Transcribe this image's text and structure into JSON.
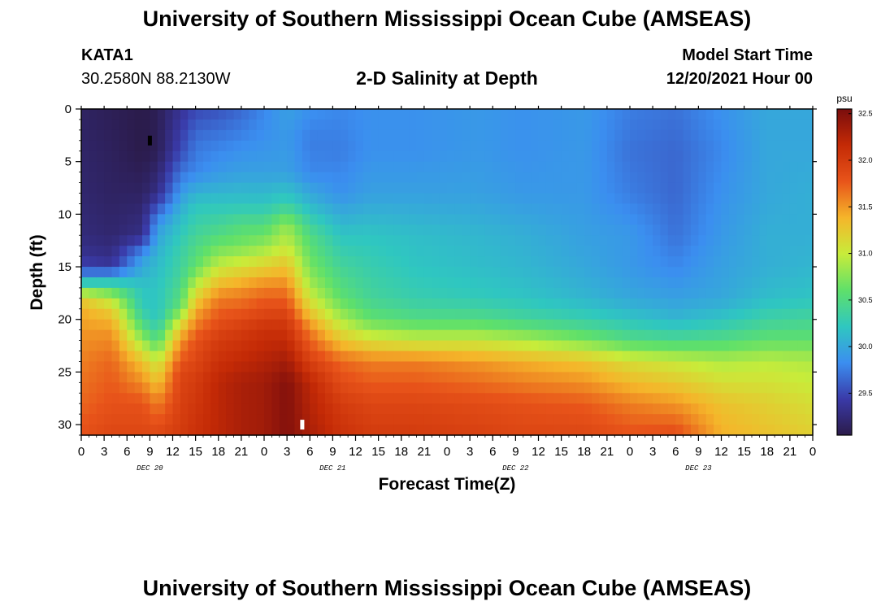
{
  "header": {
    "title": "University of Southern Mississippi Ocean Cube (AMSEAS)",
    "station": "KATA1",
    "coords": "30.2580N  88.2130W",
    "chart_title": "2-D Salinity at Depth",
    "model_start_label": "Model Start Time",
    "model_start_value": "12/20/2021 Hour 00",
    "repeat_title": "University of Southern Mississippi Ocean Cube (AMSEAS)"
  },
  "colors": {
    "scale": [
      "#2b1b4a",
      "#3a3aa8",
      "#3b8ef0",
      "#2fc7c0",
      "#5fe06a",
      "#c8ec3a",
      "#f5b52a",
      "#e8541a",
      "#c42a06",
      "#7a0d0d"
    ]
  },
  "chart_data": {
    "type": "heatmap",
    "title": "2-D Salinity at Depth",
    "xlabel": "Forecast Time(Z)",
    "ylabel": "Depth (ft)",
    "x_tick_labels": [
      "0",
      "3",
      "6",
      "9",
      "12",
      "15",
      "18",
      "21",
      "0",
      "3",
      "6",
      "9",
      "12",
      "15",
      "18",
      "21",
      "0",
      "3",
      "6",
      "9",
      "12",
      "15",
      "18",
      "21",
      "0",
      "3",
      "6",
      "9",
      "12",
      "15",
      "18",
      "21",
      "0"
    ],
    "day_labels": [
      "DEC 20",
      "DEC 21",
      "DEC 22",
      "DEC 23"
    ],
    "x_range_hours": [
      0,
      96
    ],
    "y_ticks": [
      0,
      5,
      10,
      15,
      20,
      25,
      30
    ],
    "y_range_ft": [
      0,
      31
    ],
    "colorbar": {
      "unit": "psu",
      "range": [
        29.05,
        32.55
      ],
      "ticks": [
        "32.5",
        "32.0",
        "31.5",
        "31.0",
        "30.5",
        "30.0",
        "29.5"
      ]
    },
    "markers": [
      {
        "hour": 9,
        "depth_ft": 3,
        "color": "#000000"
      },
      {
        "hour": 29,
        "depth_ft": 30,
        "color": "#ffffff"
      }
    ],
    "salinity_profiles": [
      {
        "hour": 0,
        "depth": [
          0,
          8,
          12,
          14,
          15,
          16,
          17,
          18,
          19,
          21,
          24,
          28,
          31
        ],
        "psu": [
          29.15,
          29.2,
          29.25,
          29.35,
          29.5,
          29.9,
          30.6,
          31.2,
          31.4,
          31.5,
          31.6,
          31.7,
          31.8
        ]
      },
      {
        "hour": 4,
        "depth": [
          0,
          8,
          12,
          14,
          15,
          16,
          17,
          18,
          19,
          21,
          24,
          28,
          31
        ],
        "psu": [
          29.1,
          29.15,
          29.2,
          29.3,
          29.4,
          30.0,
          30.5,
          30.9,
          31.2,
          31.5,
          31.7,
          31.8,
          31.9
        ]
      },
      {
        "hour": 8,
        "depth": [
          0,
          4,
          8,
          12,
          14,
          17,
          19,
          21,
          24,
          28,
          31
        ],
        "psu": [
          29.05,
          29.05,
          29.15,
          29.3,
          29.9,
          30.2,
          30.25,
          30.6,
          31.3,
          31.8,
          31.9
        ]
      },
      {
        "hour": 10,
        "depth": [
          0,
          4,
          8,
          11,
          14,
          17,
          20,
          22,
          24,
          28,
          31
        ],
        "psu": [
          29.1,
          29.1,
          29.3,
          29.9,
          30.1,
          30.2,
          30.2,
          30.5,
          31.0,
          31.6,
          31.9
        ]
      },
      {
        "hour": 13,
        "depth": [
          0,
          4,
          7,
          10,
          13,
          16,
          19,
          20,
          22,
          25,
          31
        ],
        "psu": [
          29.35,
          29.5,
          29.8,
          30.1,
          30.3,
          30.4,
          30.6,
          31.0,
          31.5,
          31.9,
          32.0
        ]
      },
      {
        "hour": 15,
        "depth": [
          0,
          3,
          6,
          9,
          12,
          15,
          17,
          19,
          22,
          26,
          31
        ],
        "psu": [
          29.5,
          29.7,
          29.8,
          30.2,
          30.4,
          30.6,
          31.0,
          31.4,
          31.8,
          32.0,
          32.1
        ]
      },
      {
        "hour": 18,
        "depth": [
          0,
          3,
          6,
          9,
          12,
          14,
          16,
          18,
          22,
          26,
          31
        ],
        "psu": [
          29.55,
          29.75,
          29.9,
          30.2,
          30.5,
          30.8,
          31.2,
          31.6,
          32.0,
          32.2,
          32.2
        ]
      },
      {
        "hour": 21,
        "depth": [
          0,
          3,
          6,
          9,
          11,
          13,
          15,
          17,
          21,
          26,
          31
        ],
        "psu": [
          29.65,
          29.8,
          29.95,
          30.2,
          30.5,
          30.7,
          31.1,
          31.5,
          32.0,
          32.3,
          32.3
        ]
      },
      {
        "hour": 24,
        "depth": [
          0,
          3,
          6,
          9,
          11,
          13,
          15,
          17,
          21,
          26,
          31
        ],
        "psu": [
          29.8,
          29.85,
          29.95,
          30.2,
          30.5,
          30.8,
          31.2,
          31.6,
          32.1,
          32.35,
          32.35
        ]
      },
      {
        "hour": 27,
        "depth": [
          0,
          3,
          6,
          9,
          11,
          13,
          15,
          17,
          20,
          26,
          31
        ],
        "psu": [
          29.95,
          29.9,
          29.95,
          30.3,
          30.8,
          31.0,
          31.3,
          31.6,
          32.0,
          32.5,
          32.5
        ]
      },
      {
        "hour": 30,
        "depth": [
          0,
          3,
          6,
          9,
          12,
          15,
          17,
          19,
          21,
          26,
          31
        ],
        "psu": [
          29.85,
          29.75,
          29.8,
          30.1,
          30.5,
          30.7,
          30.9,
          31.2,
          31.6,
          32.2,
          32.3
        ]
      },
      {
        "hour": 34,
        "depth": [
          0,
          4,
          8,
          12,
          15,
          18,
          20,
          22,
          24,
          28,
          31
        ],
        "psu": [
          29.8,
          29.75,
          29.85,
          30.2,
          30.4,
          30.6,
          30.9,
          31.3,
          31.7,
          32.0,
          32.1
        ]
      },
      {
        "hour": 38,
        "depth": [
          0,
          4,
          8,
          12,
          15,
          18,
          20,
          22,
          24,
          28,
          31
        ],
        "psu": [
          29.85,
          29.85,
          29.95,
          30.2,
          30.3,
          30.4,
          30.6,
          31.1,
          31.6,
          31.9,
          32.0
        ]
      },
      {
        "hour": 44,
        "depth": [
          0,
          4,
          8,
          12,
          15,
          18,
          20,
          22,
          24,
          28,
          31
        ],
        "psu": [
          29.85,
          29.85,
          29.95,
          30.15,
          30.2,
          30.3,
          30.5,
          31.0,
          31.6,
          31.9,
          32.0
        ]
      },
      {
        "hour": 52,
        "depth": [
          0,
          4,
          8,
          12,
          15,
          18,
          20,
          22,
          24,
          28,
          31
        ],
        "psu": [
          29.9,
          29.9,
          29.95,
          30.1,
          30.15,
          30.25,
          30.5,
          31.0,
          31.5,
          31.85,
          31.95
        ]
      },
      {
        "hour": 58,
        "depth": [
          0,
          4,
          8,
          12,
          15,
          18,
          20,
          22,
          24,
          28,
          31
        ],
        "psu": [
          29.85,
          29.85,
          29.9,
          30.05,
          30.1,
          30.2,
          30.4,
          30.9,
          31.4,
          31.8,
          31.9
        ]
      },
      {
        "hour": 66,
        "depth": [
          0,
          4,
          8,
          12,
          15,
          18,
          20,
          22,
          24,
          28,
          31
        ],
        "psu": [
          29.9,
          29.9,
          29.9,
          29.95,
          30.0,
          30.1,
          30.3,
          30.7,
          31.3,
          31.75,
          31.9
        ]
      },
      {
        "hour": 72,
        "depth": [
          0,
          4,
          8,
          12,
          15,
          18,
          20,
          22,
          24,
          28,
          31
        ],
        "psu": [
          29.75,
          29.7,
          29.75,
          29.9,
          29.9,
          30.0,
          30.2,
          30.5,
          31.1,
          31.6,
          31.8
        ]
      },
      {
        "hour": 78,
        "depth": [
          0,
          4,
          8,
          12,
          15,
          18,
          20,
          22,
          24,
          28,
          31
        ],
        "psu": [
          29.7,
          29.65,
          29.65,
          29.7,
          29.8,
          29.95,
          30.1,
          30.45,
          31.0,
          31.5,
          31.85
        ]
      },
      {
        "hour": 84,
        "depth": [
          0,
          4,
          8,
          12,
          15,
          18,
          20,
          22,
          24,
          28,
          31
        ],
        "psu": [
          29.85,
          29.8,
          29.85,
          29.9,
          29.95,
          30.0,
          30.2,
          30.5,
          30.9,
          31.3,
          31.4
        ]
      },
      {
        "hour": 90,
        "depth": [
          0,
          4,
          8,
          12,
          15,
          18,
          20,
          22,
          24,
          28,
          31
        ],
        "psu": [
          30.0,
          30.0,
          30.0,
          30.05,
          30.05,
          30.15,
          30.35,
          30.6,
          30.95,
          31.2,
          31.3
        ]
      },
      {
        "hour": 96,
        "depth": [
          0,
          4,
          8,
          12,
          15,
          18,
          20,
          22,
          24,
          28,
          31
        ],
        "psu": [
          30.0,
          30.0,
          30.05,
          30.05,
          30.1,
          30.2,
          30.4,
          30.6,
          30.9,
          31.1,
          31.2
        ]
      }
    ]
  }
}
